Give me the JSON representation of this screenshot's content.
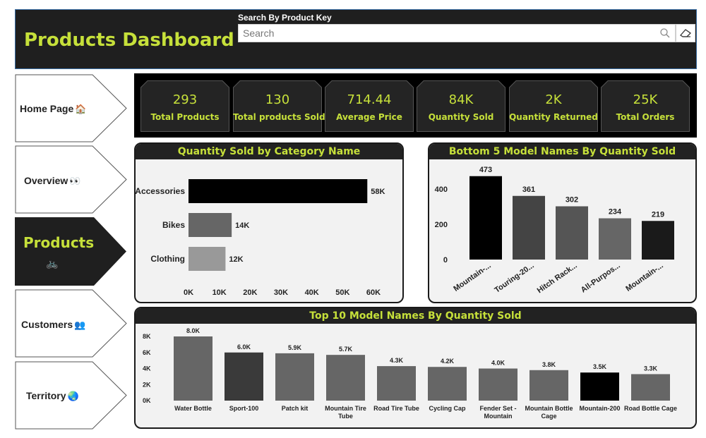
{
  "header": {
    "title": "Products Dashboard",
    "search_label": "Search By Product Key",
    "search_placeholder": "Search"
  },
  "nav": {
    "items": [
      {
        "label": "Home Page",
        "emoji": "🏠"
      },
      {
        "label": "Overview",
        "emoji": "👀"
      },
      {
        "label": "Products",
        "emoji": "🚲"
      },
      {
        "label": "Customers",
        "emoji": "👥"
      },
      {
        "label": "Territory",
        "emoji": "🌏"
      }
    ],
    "active_index": 2
  },
  "kpis": [
    {
      "value": "293",
      "label": "Total Products"
    },
    {
      "value": "130",
      "label": "Total products Sold"
    },
    {
      "value": "714.44",
      "label": "Average Price"
    },
    {
      "value": "84K",
      "label": "Quantity Sold"
    },
    {
      "value": "2K",
      "label": "Quantity Returned"
    },
    {
      "value": "25K",
      "label": "Total Orders"
    }
  ],
  "colors": {
    "accent": "#c6e03a",
    "header_bg": "#1f1f1f",
    "panel_bg": "#f2f2f2"
  },
  "chart_data": [
    {
      "type": "bar",
      "orientation": "horizontal",
      "title": "Quantity Sold by Category Name",
      "categories": [
        "Accessories",
        "Bikes",
        "Clothing"
      ],
      "values": [
        58000,
        14000,
        12000
      ],
      "data_labels": [
        "58K",
        "14K",
        "12K"
      ],
      "bar_colors": [
        "#000000",
        "#666666",
        "#999999"
      ],
      "xlim": [
        0,
        60000
      ],
      "xticks": [
        "0K",
        "10K",
        "20K",
        "30K",
        "40K",
        "50K",
        "60K"
      ],
      "grid": false
    },
    {
      "type": "bar",
      "title": "Bottom 5 Model Names By Quantity Sold",
      "categories": [
        "Mountain-...",
        "Touring-20...",
        "Hitch Rack...",
        "All-Purpos...",
        "Mountain-..."
      ],
      "values": [
        473,
        361,
        302,
        234,
        219
      ],
      "data_labels": [
        "473",
        "361",
        "302",
        "234",
        "219"
      ],
      "bar_colors": [
        "#000000",
        "#444444",
        "#555555",
        "#666666",
        "#1a1a1a"
      ],
      "ylim": [
        0,
        500
      ],
      "yticks": [
        "0",
        "200",
        "400"
      ],
      "grid": false
    },
    {
      "type": "bar",
      "title": "Top 10 Model Names By Quantity Sold",
      "categories": [
        "Water Bottle",
        "Sport-100",
        "Patch kit",
        "Mountain Tire Tube",
        "Road Tire Tube",
        "Cycling Cap",
        "Fender Set - Mountain",
        "Mountain Bottle Cage",
        "Mountain-200",
        "Road Bottle Cage"
      ],
      "values": [
        8000,
        6000,
        5900,
        5700,
        4300,
        4200,
        4000,
        3800,
        3500,
        3300
      ],
      "data_labels": [
        "8.0K",
        "6.0K",
        "5.9K",
        "5.7K",
        "4.3K",
        "4.2K",
        "4.0K",
        "3.8K",
        "3.5K",
        "3.3K"
      ],
      "bar_colors": [
        "#666666",
        "#3a3a3a",
        "#666666",
        "#666666",
        "#666666",
        "#666666",
        "#666666",
        "#666666",
        "#000000",
        "#666666"
      ],
      "ylim": [
        0,
        8000
      ],
      "yticks": [
        "0K",
        "2K",
        "4K",
        "6K",
        "8K"
      ],
      "grid": false
    }
  ]
}
